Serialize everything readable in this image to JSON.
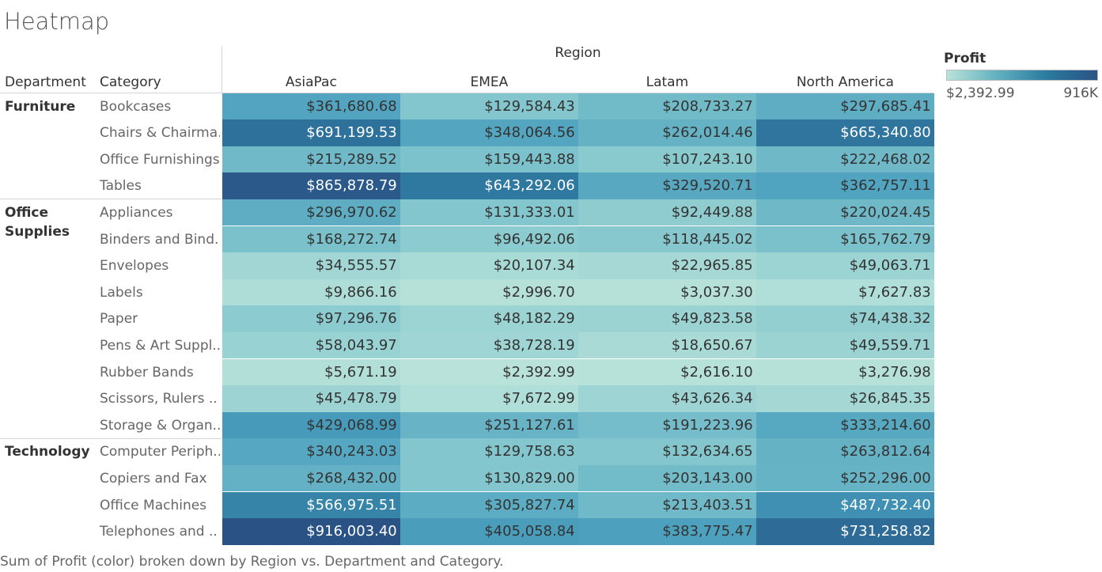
{
  "title": "Heatmap",
  "caption": "Sum of Profit (color) broken down by Region vs. Department and Category.",
  "chart_data": {
    "type": "heatmap",
    "column_group_label": "Region",
    "row_header_labels": [
      "Department",
      "Category"
    ],
    "columns": [
      "AsiaPac",
      "EMEA",
      "Latam",
      "North America"
    ],
    "groups": [
      {
        "department": "Furniture",
        "rows": [
          {
            "category": "Bookcases",
            "values": [
              361680.68,
              129584.43,
              208733.27,
              297685.41
            ],
            "labels": [
              "$361,680.68",
              "$129,584.43",
              "$208,733.27",
              "$297,685.41"
            ]
          },
          {
            "category": "Chairs & Chairma..",
            "values": [
              691199.53,
              348064.56,
              262014.46,
              665340.8
            ],
            "labels": [
              "$691,199.53",
              "$348,064.56",
              "$262,014.46",
              "$665,340.80"
            ]
          },
          {
            "category": "Office Furnishings",
            "values": [
              215289.52,
              159443.88,
              107243.1,
              222468.02
            ],
            "labels": [
              "$215,289.52",
              "$159,443.88",
              "$107,243.10",
              "$222,468.02"
            ]
          },
          {
            "category": "Tables",
            "values": [
              865878.79,
              643292.06,
              329520.71,
              362757.11
            ],
            "labels": [
              "$865,878.79",
              "$643,292.06",
              "$329,520.71",
              "$362,757.11"
            ]
          }
        ]
      },
      {
        "department": "Office Supplies",
        "rows": [
          {
            "category": "Appliances",
            "values": [
              296970.62,
              131333.01,
              92449.88,
              220024.45
            ],
            "labels": [
              "$296,970.62",
              "$131,333.01",
              "$92,449.88",
              "$220,024.45"
            ]
          },
          {
            "category": "Binders and Bind..",
            "values": [
              168272.74,
              96492.06,
              118445.02,
              165762.79
            ],
            "labels": [
              "$168,272.74",
              "$96,492.06",
              "$118,445.02",
              "$165,762.79"
            ]
          },
          {
            "category": "Envelopes",
            "values": [
              34555.57,
              20107.34,
              22965.85,
              49063.71
            ],
            "labels": [
              "$34,555.57",
              "$20,107.34",
              "$22,965.85",
              "$49,063.71"
            ]
          },
          {
            "category": "Labels",
            "values": [
              9866.16,
              2996.7,
              3037.3,
              7627.83
            ],
            "labels": [
              "$9,866.16",
              "$2,996.70",
              "$3,037.30",
              "$7,627.83"
            ]
          },
          {
            "category": "Paper",
            "values": [
              97296.76,
              48182.29,
              49823.58,
              74438.32
            ],
            "labels": [
              "$97,296.76",
              "$48,182.29",
              "$49,823.58",
              "$74,438.32"
            ]
          },
          {
            "category": "Pens & Art Suppl..",
            "values": [
              58043.97,
              38728.19,
              18650.67,
              49559.71
            ],
            "labels": [
              "$58,043.97",
              "$38,728.19",
              "$18,650.67",
              "$49,559.71"
            ]
          },
          {
            "category": "Rubber Bands",
            "values": [
              5671.19,
              2392.99,
              2616.1,
              3276.98
            ],
            "labels": [
              "$5,671.19",
              "$2,392.99",
              "$2,616.10",
              "$3,276.98"
            ]
          },
          {
            "category": "Scissors, Rulers ..",
            "values": [
              45478.79,
              7672.99,
              43626.34,
              26845.35
            ],
            "labels": [
              "$45,478.79",
              "$7,672.99",
              "$43,626.34",
              "$26,845.35"
            ]
          },
          {
            "category": "Storage & Organ..",
            "values": [
              429068.99,
              251127.61,
              191223.96,
              333214.6
            ],
            "labels": [
              "$429,068.99",
              "$251,127.61",
              "$191,223.96",
              "$333,214.60"
            ]
          }
        ]
      },
      {
        "department": "Technology",
        "rows": [
          {
            "category": "Computer Periph..",
            "values": [
              340243.03,
              129758.63,
              132634.65,
              263812.64
            ],
            "labels": [
              "$340,243.03",
              "$129,758.63",
              "$132,634.65",
              "$263,812.64"
            ]
          },
          {
            "category": "Copiers and Fax",
            "values": [
              268432.0,
              130829.0,
              203143.0,
              252296.0
            ],
            "labels": [
              "$268,432.00",
              "$130,829.00",
              "$203,143.00",
              "$252,296.00"
            ]
          },
          {
            "category": "Office Machines",
            "values": [
              566975.51,
              305827.74,
              213403.51,
              487732.4
            ],
            "labels": [
              "$566,975.51",
              "$305,827.74",
              "$213,403.51",
              "$487,732.40"
            ]
          },
          {
            "category": "Telephones and ..",
            "values": [
              916003.4,
              405058.84,
              383775.47,
              731258.82
            ],
            "labels": [
              "$916,003.40",
              "$405,058.84",
              "$383,775.47",
              "$731,258.82"
            ]
          }
        ]
      }
    ],
    "color_legend": {
      "title": "Profit",
      "min_label": "$2,392.99",
      "max_label": "916K",
      "min": 2392.99,
      "max": 916003.4,
      "colors": [
        "#b9e3da",
        "#62b0c0",
        "#2b7aa0",
        "#2a5285"
      ]
    }
  }
}
